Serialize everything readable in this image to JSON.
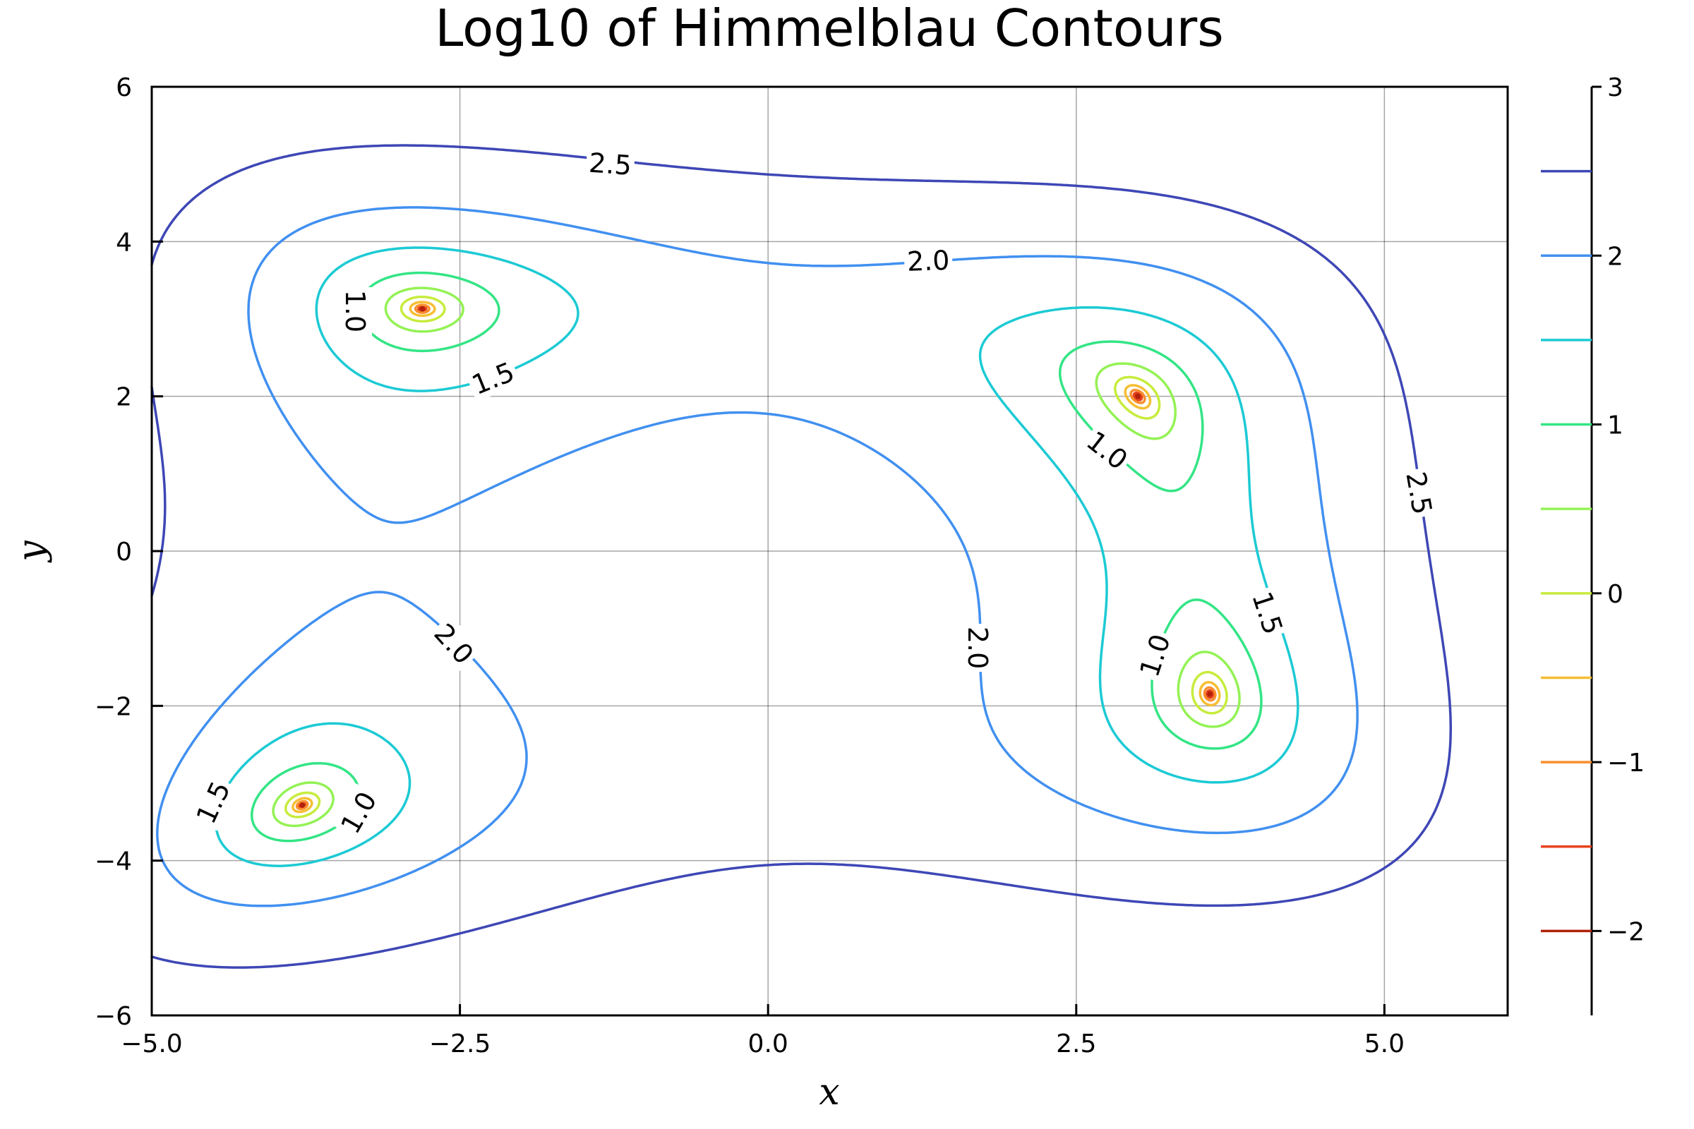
{
  "chart_data": {
    "type": "contour",
    "title": "Log10 of Himmelblau Contours",
    "xlabel": "x",
    "ylabel": "y",
    "xlim": [
      -5.0,
      6.0
    ],
    "ylim": [
      -6,
      6
    ],
    "x_ticks": [
      {
        "value": -5.0,
        "label": "−5.0"
      },
      {
        "value": -2.5,
        "label": "−2.5"
      },
      {
        "value": 0.0,
        "label": "0.0"
      },
      {
        "value": 2.5,
        "label": "2.5"
      },
      {
        "value": 5.0,
        "label": "5.0"
      }
    ],
    "y_ticks": [
      {
        "value": -6,
        "label": "−6"
      },
      {
        "value": -4,
        "label": "−4"
      },
      {
        "value": -2,
        "label": "−2"
      },
      {
        "value": 0,
        "label": "0"
      },
      {
        "value": 2,
        "label": "2"
      },
      {
        "value": 4,
        "label": "4"
      },
      {
        "value": 6,
        "label": "6"
      }
    ],
    "grid": true,
    "function": "log10((x^2 + y^2 - 11)^2 + (x + y^2 - 7)^2)",
    "levels": [
      -2.0,
      -1.5,
      -1.0,
      -0.5,
      0.0,
      0.5,
      1.0,
      1.5,
      2.0,
      2.5
    ],
    "level_colors": [
      "#b2220b",
      "#e8431e",
      "#f98e2d",
      "#f6be34",
      "#c7ec3d",
      "#94f255",
      "#33e585",
      "#1ccad4",
      "#4190f0",
      "#3e47b5"
    ],
    "minima": [
      {
        "x": 3.0,
        "y": 2.0
      },
      {
        "x": -2.805,
        "y": 3.131
      },
      {
        "x": -3.779,
        "y": -3.283
      },
      {
        "x": 3.584,
        "y": -1.848
      }
    ],
    "contour_labels": [
      {
        "text": "2.5",
        "x": -1.28,
        "y": 5.0,
        "angle": 4
      },
      {
        "text": "2.5",
        "x": 5.28,
        "y": 0.75,
        "angle": 80
      },
      {
        "text": "2.0",
        "x": 1.3,
        "y": 3.75,
        "angle": -2
      },
      {
        "text": "2.0",
        "x": -2.55,
        "y": -1.2,
        "angle": 48
      },
      {
        "text": "2.0",
        "x": 1.7,
        "y": -1.25,
        "angle": 90
      },
      {
        "text": "1.5",
        "x": -2.23,
        "y": 2.23,
        "angle": -22
      },
      {
        "text": "1.5",
        "x": 4.05,
        "y": -0.8,
        "angle": 72
      },
      {
        "text": "1.5",
        "x": -4.5,
        "y": -3.25,
        "angle": -65
      },
      {
        "text": "1.0",
        "x": -3.35,
        "y": 3.1,
        "angle": 90
      },
      {
        "text": "1.0",
        "x": 2.75,
        "y": 1.3,
        "angle": 38
      },
      {
        "text": "1.0",
        "x": 3.14,
        "y": -1.35,
        "angle": -72
      },
      {
        "text": "1.0",
        "x": -3.32,
        "y": -3.38,
        "angle": -60
      }
    ],
    "colorbar": {
      "ticks": [
        {
          "value": 3,
          "label": "3"
        },
        {
          "value": 2,
          "label": "2"
        },
        {
          "value": 1,
          "label": "1"
        },
        {
          "value": 0,
          "label": "0"
        },
        {
          "value": -1,
          "label": "−1"
        },
        {
          "value": -2,
          "label": "−2"
        }
      ],
      "range": [
        -2.5,
        3.0
      ]
    }
  }
}
